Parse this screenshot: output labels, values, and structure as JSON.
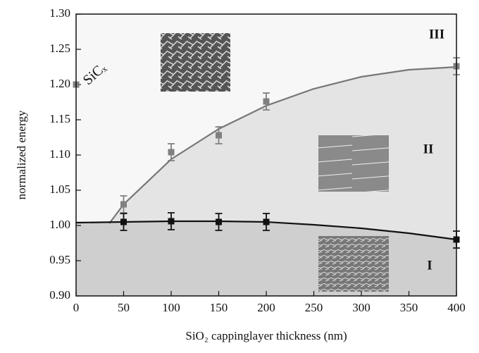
{
  "chart_data": {
    "type": "scatter",
    "x_label": "SiO₂ cappinglayer thickness (nm)",
    "y_label": "normalized energy",
    "xlim": [
      0,
      400
    ],
    "ylim": [
      0.9,
      1.3
    ],
    "xticks": [
      0,
      50,
      100,
      150,
      200,
      250,
      300,
      350,
      400
    ],
    "yticks": [
      {
        "value": 0.9,
        "label": "0.90"
      },
      {
        "value": 0.95,
        "label": "0.95"
      },
      {
        "value": 1,
        "label": "1.00"
      },
      {
        "value": 1.05,
        "label": "1.05"
      },
      {
        "value": 1.1,
        "label": "1.10"
      },
      {
        "value": 1.15,
        "label": "1.15"
      },
      {
        "value": 1.2,
        "label": "1.20"
      },
      {
        "value": 1.25,
        "label": "1.25"
      },
      {
        "value": 1.3,
        "label": "1.30"
      }
    ],
    "series": [
      {
        "style": "line",
        "color": "#777777",
        "fill": "#e4e4e4",
        "x": [
          35,
          50,
          100,
          150,
          200,
          250,
          300,
          350,
          400
        ],
        "values": [
          1.003,
          1.03,
          1.094,
          1.137,
          1.17,
          1.194,
          1.211,
          1.221,
          1.225
        ]
      },
      {
        "style": "line",
        "color": "#111111",
        "fill": "#cfcfcf",
        "x": [
          0,
          50,
          100,
          150,
          200,
          250,
          300,
          350,
          400
        ],
        "values": [
          1.004,
          1.005,
          1.006,
          1.006,
          1.005,
          1.001,
          0.996,
          0.989,
          0.98
        ]
      },
      {
        "style": "markers",
        "color": "#808080",
        "x": [
          50,
          100,
          150,
          200,
          400
        ],
        "values": [
          1.03,
          1.104,
          1.128,
          1.176,
          1.226
        ],
        "errors": [
          0.012,
          0.012,
          0.012,
          0.012,
          0.012
        ]
      },
      {
        "style": "markers",
        "color": "#111111",
        "x": [
          50,
          100,
          150,
          200,
          400
        ],
        "values": [
          1.005,
          1.006,
          1.005,
          1.005,
          0.98
        ],
        "errors": [
          0.012,
          0.012,
          0.012,
          0.012,
          0.012
        ]
      },
      {
        "style": "markers",
        "name": "SiCₓ",
        "color": "#808080",
        "x": [
          0
        ],
        "values": [
          1.2
        ]
      }
    ],
    "annotations": [
      "III",
      "II",
      "I"
    ]
  }
}
